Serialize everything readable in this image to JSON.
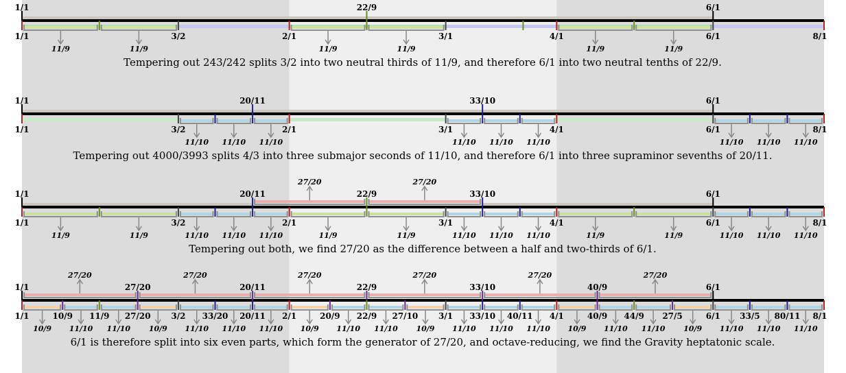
{
  "colors": {
    "band_dark": "#dcdcdc",
    "band_light": "#efefef",
    "axis": "#000000",
    "tick_octave": "#b22222",
    "tick_fifth": "#444444",
    "tick_neutral": "#6b8e23",
    "tick_seventh": "#1f1f8f",
    "bracket_neutral": "#cfe0a3",
    "bracket_second": "#b4d4e4",
    "bracket_fourth": "#b9b9e6",
    "bracket_generator": "#e8b0b0",
    "bracket_dim": "#f0d2b0",
    "bar_gray": "#c9c7c0",
    "bar_green": "#c8e8c8",
    "bar_pink": "#f0c8c8",
    "bar_lavender": "#c8c8ee",
    "bar_neutral": "#b4e0b4",
    "arrow": "#888888"
  },
  "rows": [
    {
      "top_labels": [
        "1/1",
        "22/9",
        "6/1"
      ],
      "bottom_labels": [
        "1/1",
        "3/2",
        "2/1",
        "3/1",
        "4/1",
        "6/1",
        "8/1"
      ],
      "sub_labels": [
        "11/9",
        "11/9",
        "11/9",
        "11/9",
        "11/9",
        "11/9"
      ],
      "caption": "Tempering out 243/242 splits 3/2 into two neutral thirds of 11/9, and therefore 6/1 into two neutral tenths of 22/9."
    },
    {
      "top_labels": [
        "1/1",
        "20/11",
        "33/10",
        "6/1"
      ],
      "bottom_labels": [
        "1/1",
        "3/2",
        "2/1",
        "3/1",
        "4/1",
        "6/1",
        "8/1"
      ],
      "sub_labels": [
        "11/10",
        "11/10",
        "11/10",
        "11/10",
        "11/10",
        "11/10",
        "11/10",
        "11/10",
        "11/10"
      ],
      "caption": "Tempering out 4000/3993 splits 4/3 into three submajor seconds of 11/10, and therefore 6/1 into three supraminor sevenths of 20/11."
    },
    {
      "top_labels": [
        "1/1",
        "20/11",
        "22/9",
        "33/10",
        "6/1"
      ],
      "up_labels": [
        "27/20",
        "27/20"
      ],
      "bottom_labels": [
        "1/1",
        "3/2",
        "2/1",
        "3/1",
        "4/1",
        "6/1",
        "8/1"
      ],
      "sub_labels": [
        "11/9",
        "11/9",
        "11/10",
        "11/10",
        "11/10",
        "11/9",
        "11/9",
        "11/10",
        "11/10",
        "11/10",
        "11/9",
        "11/9",
        "11/10",
        "11/10",
        "11/10"
      ],
      "caption": "Tempering out both, we find 27/20 as the difference between a half and two-thirds of 6/1."
    },
    {
      "top_labels": [
        "1/1",
        "27/20",
        "20/11",
        "22/9",
        "33/10",
        "40/9",
        "6/1"
      ],
      "up_labels": [
        "27/20",
        "27/20",
        "27/20",
        "27/20",
        "27/20",
        "27/20"
      ],
      "bottom_labels": [
        "1/1",
        "10/9",
        "11/9",
        "27/20",
        "3/2",
        "33/20",
        "20/11",
        "2/1",
        "20/9",
        "22/9",
        "27/10",
        "3/1",
        "33/10",
        "40/11",
        "4/1",
        "40/9",
        "44/9",
        "27/5",
        "6/1",
        "33/5",
        "80/11",
        "8/1"
      ],
      "sub_labels": [
        "10/9",
        "11/10",
        "11/10",
        "10/9",
        "11/10",
        "11/10",
        "11/10",
        "10/9",
        "11/10",
        "11/10",
        "10/9",
        "11/10",
        "11/10",
        "11/10",
        "10/9",
        "11/10",
        "11/10",
        "10/9",
        "11/10",
        "11/10",
        "11/10"
      ],
      "caption": "6/1 is therefore split into six even parts, which form the generator of 27/20, and octave-reducing, we find the Gravity heptatonic scale."
    }
  ]
}
